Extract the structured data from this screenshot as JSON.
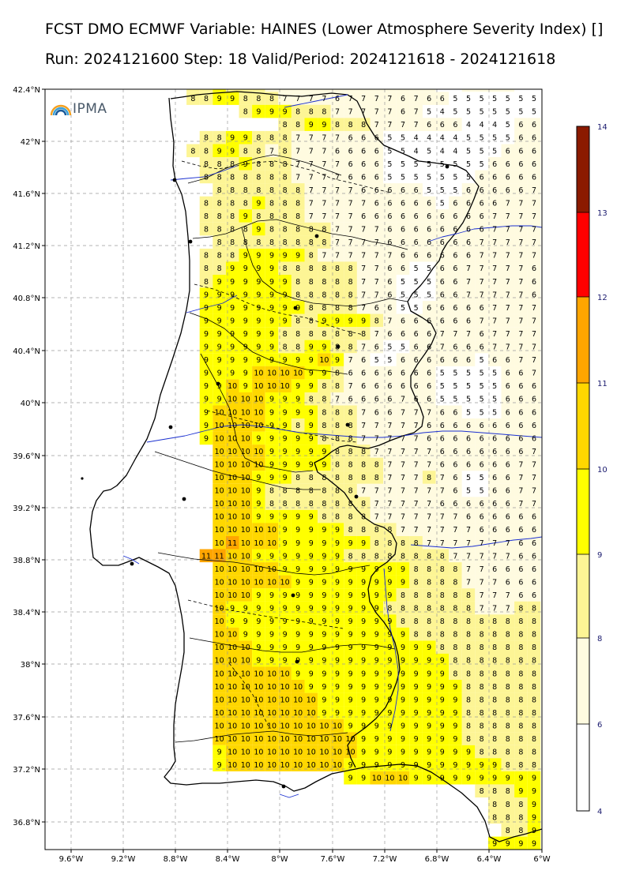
{
  "title_line1": "FCST DMO ECMWF Variable: HAINES (Lower Atmosphere Severity Index) []",
  "title_line2": "Run: 2024121600 Step: 18 Valid/Period: 2024121618 - 2024121618",
  "logo_text": "IPMA",
  "lat_labels": [
    "42.4°N",
    "42°N",
    "41.6°N",
    "41.2°N",
    "40.8°N",
    "40.4°N",
    "40°N",
    "39.6°N",
    "39.2°N",
    "38.8°N",
    "38.4°N",
    "38°N",
    "37.6°N",
    "37.2°N",
    "36.8°N"
  ],
  "lon_labels": [
    "9.6°W",
    "9.2°W",
    "8.8°W",
    "8.4°W",
    "8°W",
    "7.6°W",
    "7.2°W",
    "6.8°W",
    "6.4°W",
    "6°W"
  ],
  "colorbar": {
    "ticks": [
      "4",
      "6",
      "8",
      "9",
      "10",
      "11",
      "12",
      "13",
      "14"
    ],
    "colors": [
      "#ffffff",
      "#fffbe0",
      "#fdf595",
      "#ffff00",
      "#ffd700",
      "#ffa500",
      "#ff0000",
      "#8b1a00"
    ]
  },
  "grid_rows": [
    "8 8 9 8 8 8 7 7 7 7 6 6 6 6 6 7 7 6 6 5 5 6 6 6 6 5 5",
    "8 8 9 9 8 8 8 7 7 7 7 6 7 7 7 7 6 7 6 6 5 5 5 5 5 5 5",
    "8 9 9 9 8 8 8 7 7 7 7 7 6 7 5 4 5 5 5 5 5 5 5",
    "8 8 9 9 8 8 8 7 7 7 7 6 6 6 4 4 4 5 6 6",
    "8 8 9 9 8 8 8 7 7 7 7 6 6 6 5 5 4 4 4 4 5 5 5 5 6 6",
    "8 8 9 9 8 8 7 8 7 7 7 6 6 6 6 5 5 4 5 4 4 5 5 5 6 6 6",
    "8 8 8 9 8 8 8 7 7 7 7 6 6 6 5 5 5 5 5 5 5 5 6 6 6 6",
    "8 8 8 8 8 8 8 7 7 7 7 6 6 6 5 5 5 5 5 5 5 6 6 6 6 6",
    "8 8 8 8 8 8 8 7 7 7 7 6 6 6 6 6 5 5 5 6 6 6 6 6 7",
    "8 8 8 8 9 8 8 8 7 7 7 7 7 6 6 6 6 6 5 6 6 6 6 7 7 7",
    "8 8 8 9 8 8 8 8 7 7 7 7 6 6 6 6 6 6 6 6 6 6 7 7 7 7",
    "8 8 8 8 9 8 8 8 8 8 7 7 7 7 6 6 6 6 6 6 6 6 7 7 7 7",
    "8 8 8 8 8 8 8 8 8 7 7 7 7 6 6 6 6 6 6 6 7 7 7 7 7",
    "8 8 8 9 9 9 9 9 8 7 7 7 7 7 7 6 6 6 6 6 6 7 7 7 7 7",
    "8 8 9 9 9 9 8 8 8 8 8 8 7 7 6 6 5 5 6 6 7 7 7 7 7 6",
    "8 9 9 9 9 9 9 8 8 8 8 8 7 7 6 5 5 5 6 6 7 7 7 7 7 6",
    "9 9 9 9 9 9 9 8 8 8 8 8 7 7 6 5 5 5 6 6 7 7 7 7 7 6",
    "9 9 9 9 9 9 9 9 8 8 8 8 7 6 6 5 5 6 6 6 6 6 7 7 7 7",
    "9 9 9 9 9 9 9 8 8 9 9 9 9 8 7 6 6 6 6 6 6 7 7 7 7 7",
    "9 9 9 9 9 9 8 8 8 8 8 8 8 7 6 6 6 6 7 7 7 6 7 7 7 7",
    "9 9 9 9 9 9 8 8 9 9 8 8 7 6 5 5 6 6 7 6 6 6 7 7 7 7",
    "9 9 9 9 9 9 9 9 9 10 9 7 6 5 5 6 6 6 6 6 6 5 6 6 7 7",
    "9 9 9 9 10 10 10 10 9 9 8 6 6 6 6 6 6 6 5 5 5 5 5 6 6 7",
    "9 9 10 9 10 10 10 9 9 8 8 7 6 6 6 6 6 6 5 5 5 5 5 6 6 6",
    "9 9 10 10 10 9 9 9 8 8 7 6 6 6 6 7 6 6 5 5 5 5 5 6 6 6",
    "9 10 10 10 10 9 9 9 9 8 8 8 7 6 6 7 7 7 6 6 5 5 5 6 6 6",
    "9 10 10 10 10 9 9 8 9 8 8 8 7 7 7 7 7 6 6 6 6 6 6 6 6 6",
    "9 10 10 10 9 9 9 9 9 8 8 8 7 7 7 7 7 6 6 6 6 6 6 6 6 6",
    "10 10 10 10 9 9 9 9 9 8 8 8 7 7 7 7 7 6 6 6 6 6 6 6 7",
    "10 10 10 10 9 9 9 9 9 8 8 8 8 7 7 7 7 6 6 6 6 6 6 7 7",
    "10 10 10 9 9 9 8 8 8 8 8 8 8 7 7 7 8 7 6 5 5 6 6 7 7",
    "10 10 10 9 8 8 8 8 8 8 8 7 7 7 7 7 7 7 6 5 5 6 6 7 7",
    "10 10 10 9 8 8 8 8 8 8 8 8 7 7 7 7 7 6 6 6 6 6 6 7 7",
    "10 10 10 9 9 9 9 9 8 8 8 8 7 7 7 7 7 7 7 6 6 6 6 6 6",
    "10 10 10 10 10 9 9 9 9 9 8 8 8 8 7 7 7 7 7 7 6 6 6 6 6",
    "10 11 10 10 10 9 9 9 9 9 9 9 8 8 8 8 7 7 7 7 7 7 7 6 6",
    "11 11 10 10 9 9 9 9 9 9 9 8 8 8 8 8 8 8 8 7 7 7 7 7 6 6",
    "10 10 10 10 10 9 9 9 9 9 9 9 9 9 9 8 8 8 8 7 7 6 6 6 6",
    "10 10 10 10 10 10 9 9 9 9 9 9 9 9 9 8 8 8 8 7 7 7 6 6 6",
    "10 10 10 9 9 9 9 9 9 9 9 9 9 9 8 8 8 8 8 8 7 7 7 6 6",
    "10 9 9 9 9 9 9 9 9 9 9 9 9 8 8 8 8 8 8 8 7 7 7 8 8",
    "10 9 9 9 9 9 9 9 9 9 9 9 9 9 8 8 8 8 8 8 8 8 8 8 8",
    "10 10 9 9 9 9 9 9 9 9 9 9 9 9 9 8 8 8 8 8 8 8 8 8 8",
    "10 10 10 9 9 9 9 9 9 9 9 9 9 9 9 9 9 8 8 8 8 8 8 8 8",
    "10 10 10 9 9 9 9 9 9 9 9 9 9 9 9 9 9 9 8 8 8 8 8 8 8",
    "10 10 10 10 10 10 9 9 9 9 9 9 9 9 9 9 9 9 8 8 8 8 8 8 8",
    "10 10 10 10 10 10 10 9 9 9 9 9 9 9 9 9 9 9 9 8 8 8 8 8 8",
    "10 10 10 10 10 10 10 10 9 9 9 9 9 9 9 9 9 9 9 8 8 8 8 8 8",
    "10 10 10 10 10 10 10 10 9 9 9 9 9 9 9 9 9 9 9 8 8 8 8 8 8",
    "10 10 10 10 10 10 10 10 10 10 9 9 9 9 9 9 9 9 9 8 8 8 8 8 8",
    "10 10 10 10 10 10 10 10 10 10 10 9 9 9 9 9 9 9 9 8 8 8 8 8 8",
    "9 10 10 10 10 10 10 10 10 10 10 9 9 9 9 9 9 9 9 9 8 8 8 8 8",
    "9 10 10 10 10 10 10 10 10 10 9 9 9 9 9 9 9 9 9 9 9 9 8 8 8",
    "9 9 10 10 10 9 9 9 9 9 9 9 9 9 9",
    "8 8 8 9 9",
    "8 8 8 9",
    "8 8 8 9",
    "8 8 9",
    "9 9 9 9"
  ]
}
